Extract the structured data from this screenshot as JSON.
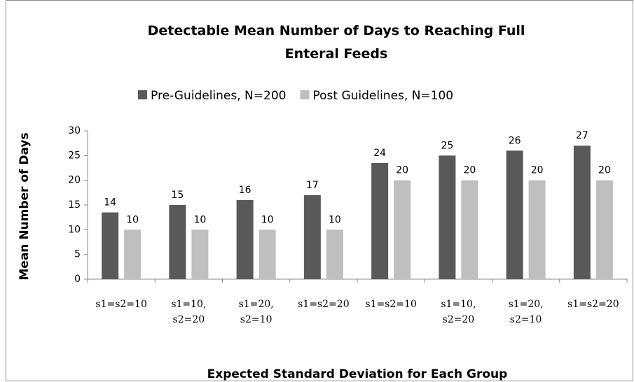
{
  "chart_data": {
    "type": "bar",
    "title": "Detectable Mean Number of Days to Reaching Full Enteral Feeds",
    "x_label": "Expected Standard Deviation for Each Group",
    "y_label": "Mean Number of Days",
    "categories": [
      "s1=s2=10",
      "s1=10, s2=20",
      "s1=20, s2=10",
      "s1=s2=20",
      "s1=s2=10",
      "s1=10, s2=20",
      "s1=20, s2=10",
      "s1=s2=20"
    ],
    "series": [
      {
        "name": "Pre-Guidelines, N=200",
        "color": "#595959",
        "values": [
          13.5,
          15,
          16,
          17,
          23.5,
          25,
          26,
          27
        ],
        "value_labels": [
          "14",
          "15",
          "16",
          "17",
          "24",
          "25",
          "26",
          "27"
        ]
      },
      {
        "name": "Post Guidelines, N=100",
        "color": "#bfbfbf",
        "values": [
          10,
          10,
          10,
          10,
          20,
          20,
          20,
          20
        ]
      }
    ],
    "ylim": [
      0,
      30
    ],
    "yticks": [
      0,
      5,
      10,
      15,
      20,
      25,
      30
    ],
    "grid": false,
    "legend": "top"
  }
}
